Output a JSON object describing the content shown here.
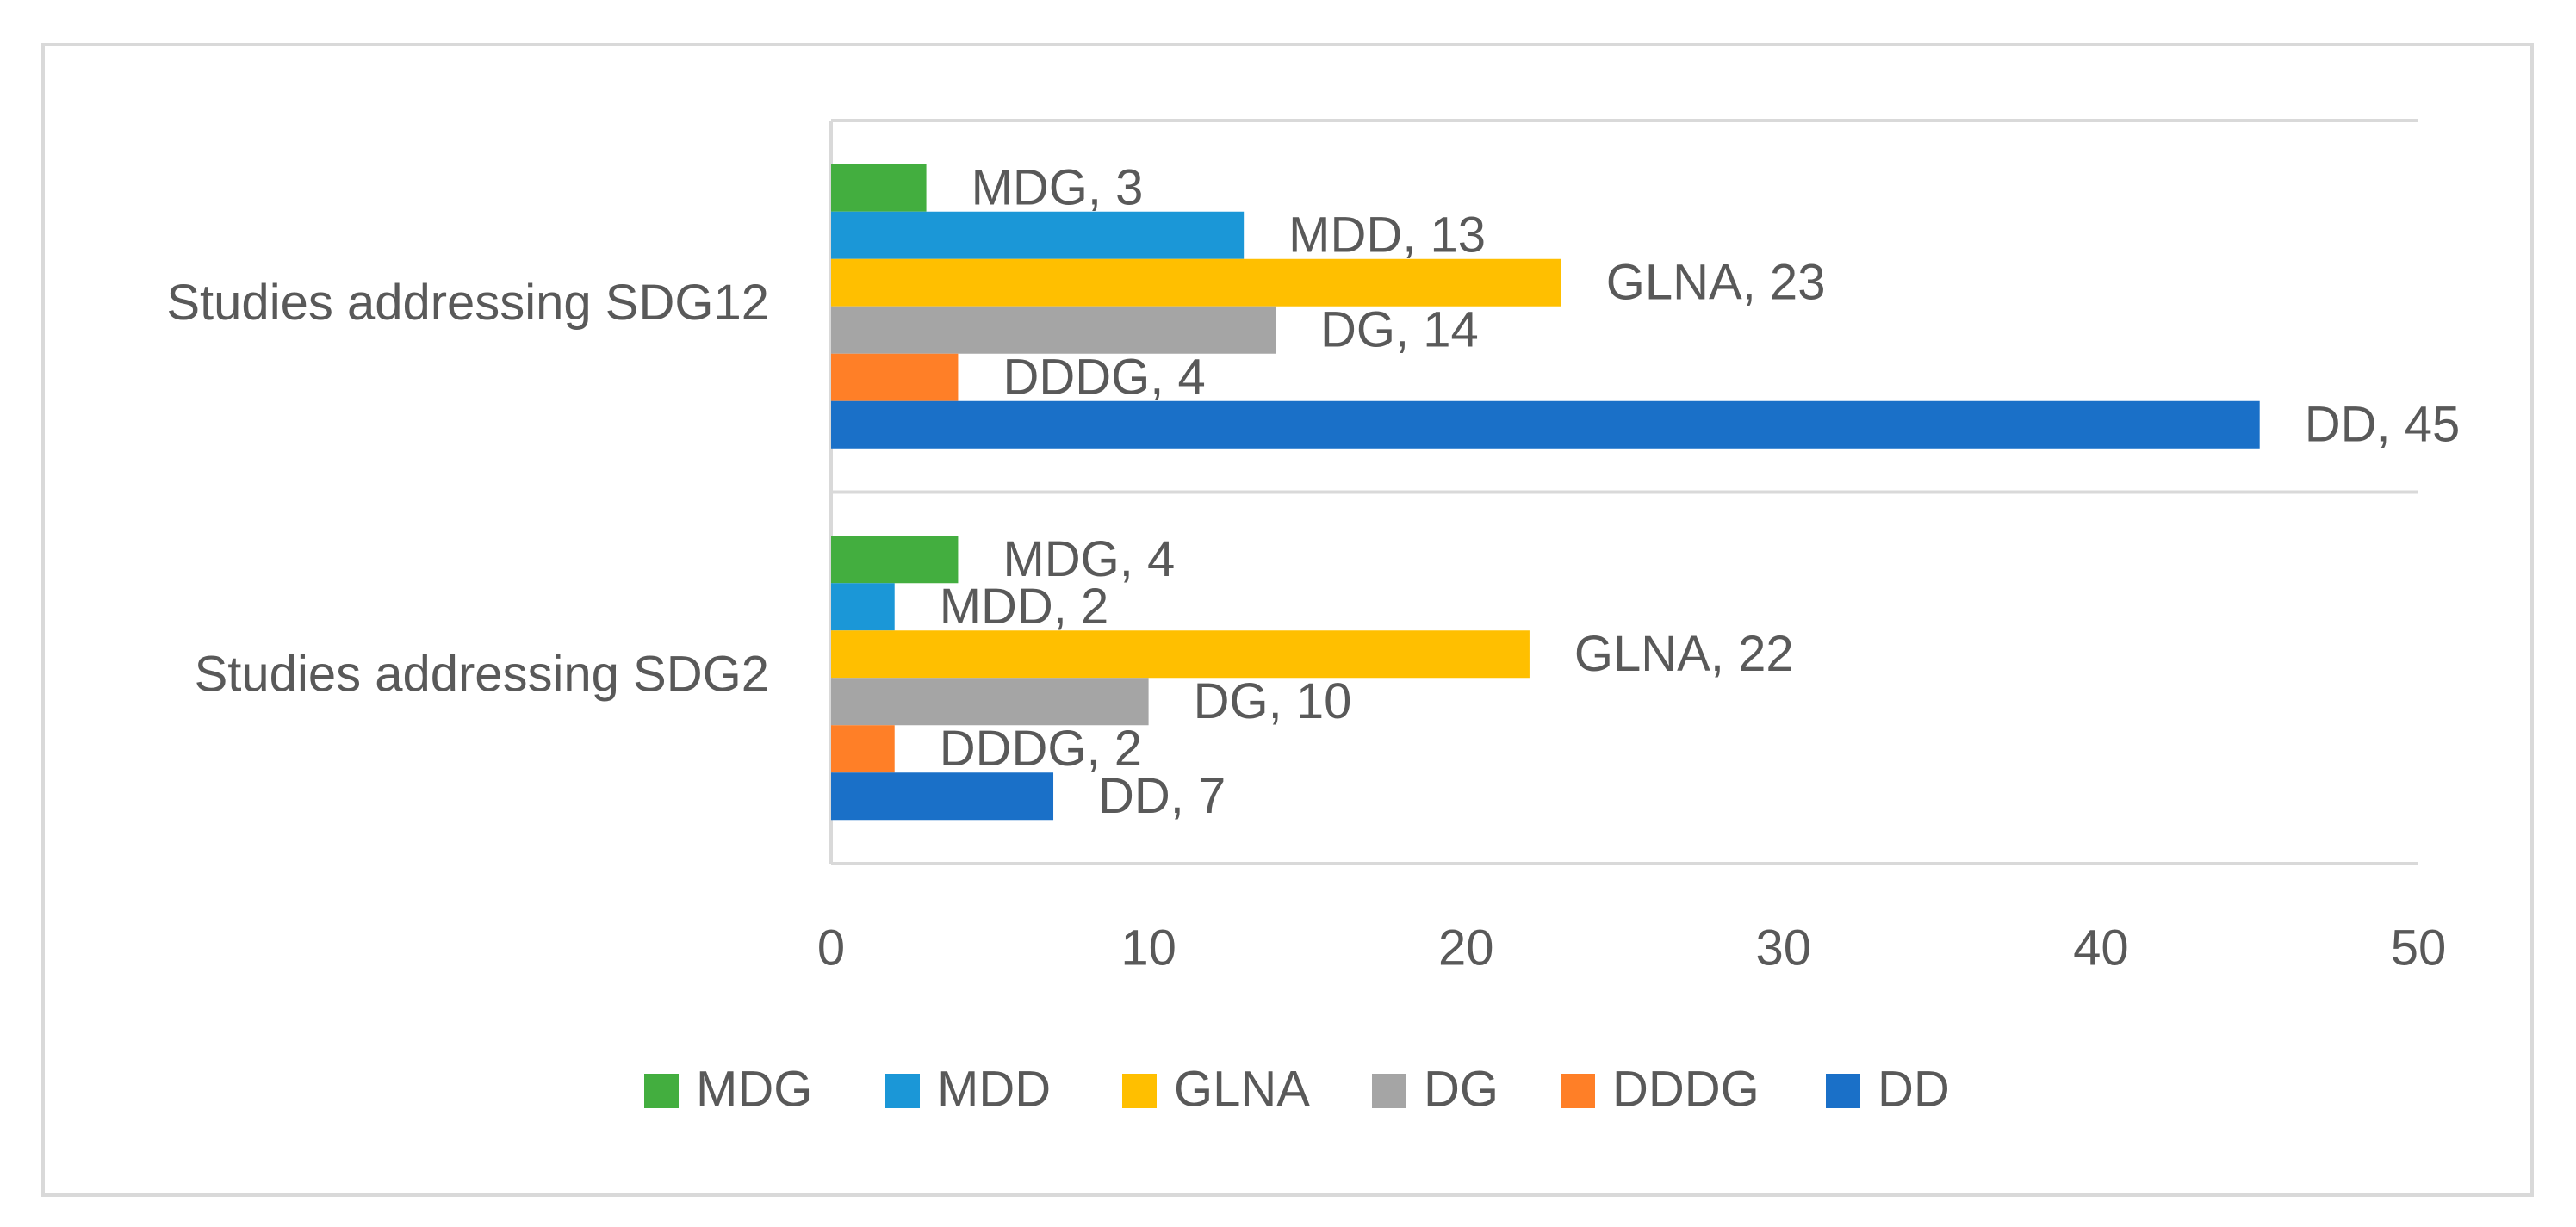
{
  "chart_data": {
    "type": "bar",
    "orientation": "horizontal",
    "categories": [
      "Studies addressing SDG12",
      "Studies addressing SDG2"
    ],
    "series": [
      {
        "name": "MDG",
        "values": [
          3,
          4
        ]
      },
      {
        "name": "MDD",
        "values": [
          13,
          2
        ]
      },
      {
        "name": "GLNA",
        "values": [
          23,
          22
        ]
      },
      {
        "name": "DG",
        "values": [
          14,
          10
        ]
      },
      {
        "name": "DDDG",
        "values": [
          4,
          2
        ]
      },
      {
        "name": "DD",
        "values": [
          45,
          7
        ]
      }
    ],
    "colors": [
      "#43ae3f",
      "#1b97d7",
      "#ffbf00",
      "#a5a5a5",
      "#ff7f27",
      "#1a70c8"
    ],
    "xlim": [
      0,
      50
    ],
    "x_ticks": [
      "0",
      "10",
      "20",
      "30",
      "40",
      "50"
    ],
    "data_labels": [
      [
        "MDG, 3",
        "MDD, 13",
        "GLNA, 23",
        "DG, 14",
        "DDDG, 4",
        "DD, 45"
      ],
      [
        "MDG, 4",
        "MDD, 2",
        "GLNA, 22",
        "DG, 10",
        "DDDG, 2",
        "DD, 7"
      ]
    ],
    "grid": "horizontal category separators",
    "legend": "bottom"
  }
}
